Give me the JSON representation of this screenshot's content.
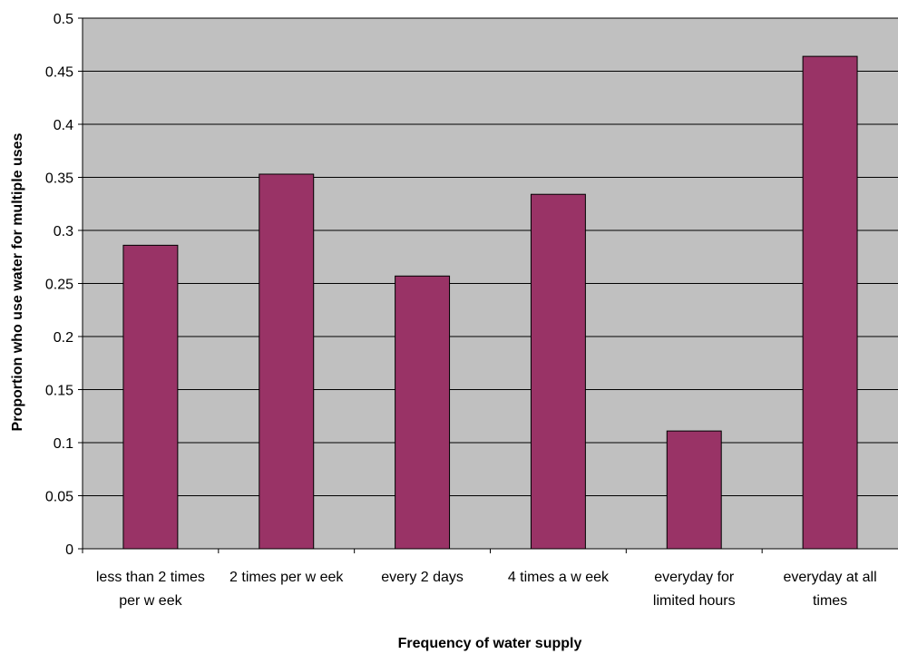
{
  "chart_data": {
    "type": "bar",
    "title": "",
    "xlabel": "Frequency of water supply",
    "ylabel": "Proportion who use water for multiple uses",
    "categories": [
      [
        "less than 2 times",
        "per w eek"
      ],
      [
        "2 times per w eek"
      ],
      [
        "every 2 days"
      ],
      [
        "4 times a w eek"
      ],
      [
        "everyday for",
        "limited hours"
      ],
      [
        "everyday at all",
        "times"
      ]
    ],
    "values": [
      0.286,
      0.353,
      0.257,
      0.334,
      0.111,
      0.464
    ],
    "ylim": [
      0,
      0.5
    ],
    "yticks": [
      "0",
      "0.05",
      "0.1",
      "0.15",
      "0.2",
      "0.25",
      "0.3",
      "0.35",
      "0.4",
      "0.45",
      "0.5"
    ],
    "grid": true,
    "legend": "none",
    "colors": {
      "plot_background": "#c0c0c0",
      "bar_fill": "#993366",
      "bar_stroke": "#000000",
      "grid": "#000000"
    }
  }
}
